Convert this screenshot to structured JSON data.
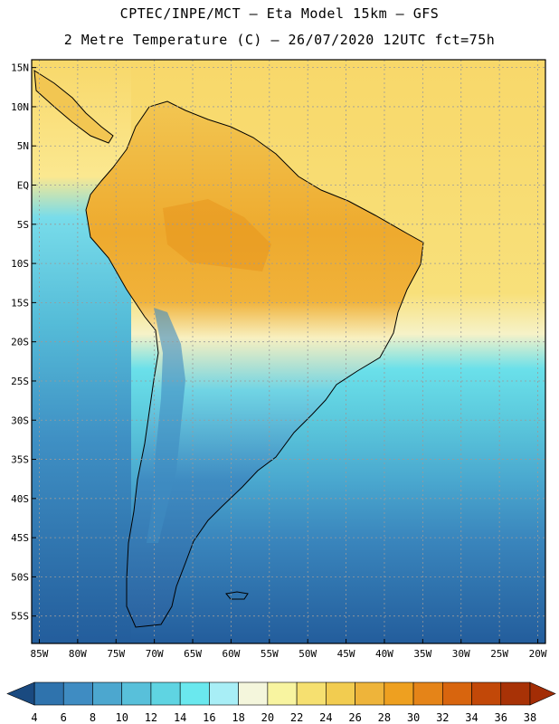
{
  "header": {
    "line1": "CPTEC/INPE/MCT –  Eta Model 15km – GFS",
    "line2": "2 Metre Temperature (C) – 26/07/2020 12UTC fct=75h"
  },
  "map": {
    "lon_range": [
      -86,
      -19
    ],
    "lat_range": [
      -58.5,
      16
    ],
    "lon_ticks": [
      "85W",
      "80W",
      "75W",
      "70W",
      "65W",
      "60W",
      "55W",
      "50W",
      "45W",
      "40W",
      "35W",
      "30W",
      "25W",
      "20W"
    ],
    "lat_ticks": [
      "15N",
      "10N",
      "5N",
      "EQ",
      "5S",
      "10S",
      "15S",
      "20S",
      "25S",
      "30S",
      "35S",
      "40S",
      "45S",
      "50S",
      "55S"
    ]
  },
  "colorbar": {
    "labels": [
      "4",
      "6",
      "8",
      "10",
      "12",
      "14",
      "16",
      "18",
      "20",
      "22",
      "24",
      "26",
      "28",
      "30",
      "32",
      "34",
      "36",
      "38"
    ],
    "colors": [
      "#1f5a96",
      "#2f73ad",
      "#3f8cc2",
      "#4ca7cf",
      "#58c0da",
      "#5fd4e2",
      "#6ae8ee",
      "#a8eef6",
      "#f4f6dc",
      "#f8f4a0",
      "#f6e070",
      "#f2cc50",
      "#eeb43a",
      "#eea020",
      "#e58418",
      "#d8650e",
      "#c24808",
      "#a83206"
    ],
    "underflow_color": "#1a4a80",
    "overflow_color": "#a32d05"
  }
}
